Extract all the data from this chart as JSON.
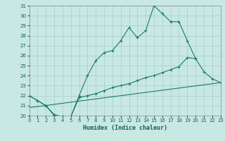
{
  "xlabel": "Humidex (Indice chaleur)",
  "bg_color": "#c8e8e4",
  "line_color": "#1a7a6e",
  "grid_color": "#a8ccc8",
  "xlim": [
    0,
    23
  ],
  "ylim": [
    20,
    31
  ],
  "xticks": [
    0,
    1,
    2,
    3,
    4,
    5,
    6,
    7,
    8,
    9,
    10,
    11,
    12,
    13,
    14,
    15,
    16,
    17,
    18,
    19,
    20,
    21,
    22,
    23
  ],
  "yticks": [
    20,
    21,
    22,
    23,
    24,
    25,
    26,
    27,
    28,
    29,
    30,
    31
  ],
  "line1_x": [
    0,
    1,
    2,
    3,
    4,
    5,
    6,
    7,
    8,
    9,
    10,
    11,
    12,
    13,
    14,
    15,
    16,
    17,
    18,
    19,
    20,
    21,
    22,
    23
  ],
  "line1_y": [
    22,
    21.5,
    21,
    20,
    19.9,
    19.9,
    22,
    24,
    25.5,
    26.3,
    26.5,
    27.5,
    28.8,
    27.8,
    28.5,
    31,
    30.2,
    29.4,
    29.4,
    27.5,
    25.7,
    null,
    null,
    null
  ],
  "line2_x": [
    0,
    1,
    2,
    3,
    4,
    5,
    6,
    7,
    8,
    9,
    10,
    11,
    12,
    13,
    14,
    15,
    16,
    17,
    18,
    19,
    20,
    21,
    22,
    23
  ],
  "line2_y": [
    22,
    21.5,
    21,
    20.1,
    19.9,
    19.9,
    21.8,
    22,
    22.2,
    22.5,
    22.8,
    23.0,
    23.2,
    23.5,
    23.8,
    24.0,
    24.3,
    24.6,
    24.9,
    25.8,
    25.7,
    24.4,
    23.7,
    23.3
  ],
  "line3_x": [
    0,
    23
  ],
  "line3_y": [
    20.8,
    23.3
  ],
  "xlabel_fontsize": 6,
  "tick_fontsize": 5
}
